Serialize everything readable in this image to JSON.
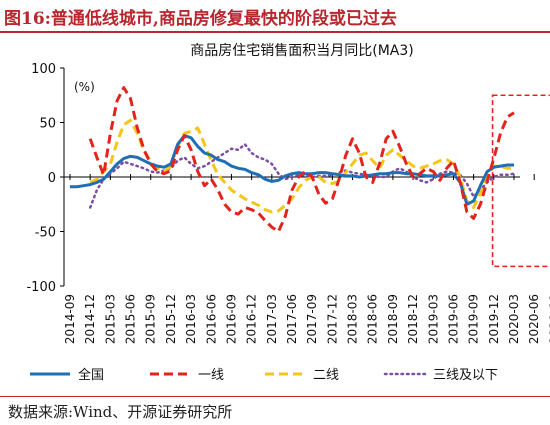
{
  "figure": {
    "label": "图16:普通低线城市,商品房修复最快的阶段或已过去",
    "source": "数据来源:Wind、开源证券研究所"
  },
  "colors": {
    "title_red": "#b8262e",
    "national": "#1f6fb7",
    "tier1": "#e3241c",
    "tier2": "#f5c518",
    "tier3_4": "#7d4ea3",
    "highlight_box": "#e3241c",
    "axis": "#000000"
  },
  "chart_data": {
    "type": "line",
    "title": "商品房住宅销售面积当月同比(MA3)",
    "ylabel": "(%)",
    "xlabel": "",
    "ylim": [
      -100,
      100
    ],
    "yticks": [
      -100,
      -50,
      0,
      50,
      100
    ],
    "grid": false,
    "legend_position": "bottom",
    "x_tick_labels": [
      "2014-09",
      "2014-12",
      "2015-03",
      "2015-06",
      "2015-09",
      "2015-12",
      "2016-03",
      "2016-06",
      "2016-09",
      "2016-12",
      "2017-03",
      "2017-06",
      "2017-09",
      "2017-12",
      "2018-03",
      "2018-06",
      "2018-09",
      "2018-12",
      "2019-03",
      "2019-06",
      "2019-09",
      "2019-12",
      "2020-03",
      "2020-06",
      "2020-09"
    ],
    "x_start": "2014-09",
    "x_step": "1 month",
    "highlight_region": {
      "x_start": "2020-01",
      "x_end": "2020-09",
      "y_range": [
        -82,
        75
      ]
    },
    "series": [
      {
        "name": "全国",
        "style": "solid",
        "values": [
          -9,
          -9,
          -8,
          -7,
          -5,
          -2,
          5,
          12,
          17,
          19,
          18,
          15,
          12,
          10,
          9,
          12,
          30,
          38,
          36,
          28,
          22,
          20,
          16,
          14,
          10,
          8,
          7,
          4,
          2,
          -2,
          -4,
          -3,
          1,
          3,
          4,
          3,
          3,
          4,
          4,
          3,
          2,
          1,
          1,
          0,
          1,
          2,
          3,
          3,
          4,
          4,
          3,
          3,
          2,
          1,
          1,
          1,
          2,
          3,
          -5,
          -25,
          -22,
          -8,
          5,
          9,
          10,
          11,
          11
        ]
      },
      {
        "name": "一线",
        "style": "dashed",
        "values": [
          null,
          null,
          null,
          35,
          18,
          2,
          40,
          70,
          82,
          72,
          45,
          25,
          12,
          5,
          3,
          6,
          25,
          38,
          25,
          5,
          -8,
          -2,
          -12,
          -25,
          -32,
          -34,
          -28,
          -30,
          -33,
          -40,
          -46,
          -50,
          -36,
          -12,
          0,
          5,
          0,
          -16,
          -24,
          -20,
          -2,
          20,
          35,
          22,
          0,
          -5,
          12,
          35,
          42,
          28,
          12,
          0,
          3,
          8,
          5,
          -3,
          8,
          15,
          -5,
          -32,
          -38,
          -25,
          -4,
          17,
          40,
          55,
          59
        ]
      },
      {
        "name": "二线",
        "style": "dashed",
        "values": [
          null,
          null,
          null,
          -5,
          -2,
          5,
          12,
          32,
          48,
          52,
          40,
          24,
          14,
          8,
          5,
          10,
          28,
          40,
          42,
          45,
          30,
          15,
          2,
          -5,
          -12,
          -16,
          -20,
          -23,
          -26,
          -30,
          -32,
          -31,
          -26,
          -20,
          -10,
          -3,
          0,
          0,
          -5,
          -6,
          -4,
          4,
          12,
          20,
          22,
          15,
          8,
          20,
          25,
          20,
          15,
          10,
          8,
          10,
          12,
          15,
          16,
          12,
          0,
          -22,
          -28,
          -15,
          0,
          10,
          10,
          8,
          8
        ]
      },
      {
        "name": "三线及以下",
        "style": "dotted",
        "values": [
          null,
          null,
          null,
          -28,
          -12,
          -2,
          3,
          8,
          14,
          12,
          10,
          8,
          5,
          4,
          6,
          8,
          15,
          18,
          12,
          8,
          10,
          14,
          18,
          22,
          26,
          25,
          30,
          22,
          18,
          16,
          12,
          3,
          -2,
          0,
          2,
          1,
          0,
          1,
          1,
          2,
          4,
          6,
          4,
          3,
          2,
          1,
          0,
          0,
          5,
          8,
          5,
          0,
          -3,
          -5,
          -2,
          3,
          5,
          4,
          2,
          -6,
          -18,
          -12,
          -5,
          0,
          2,
          2,
          3
        ]
      }
    ]
  }
}
